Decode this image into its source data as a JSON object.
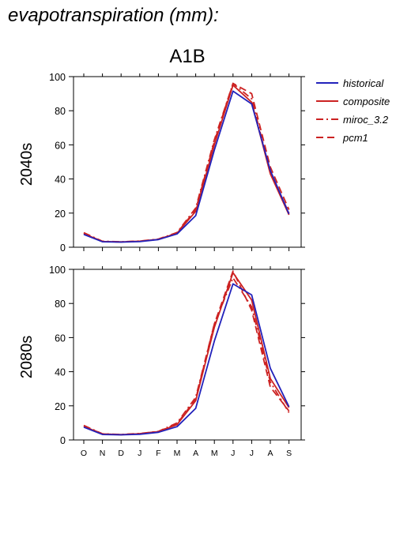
{
  "figure_title": "evapotranspiration (mm):",
  "scenario_title": "A1B",
  "colors": {
    "historical": "#2222bb",
    "projection": "#cc2222",
    "axis": "#000000"
  },
  "legend": {
    "placement": "right",
    "entries": [
      {
        "label": "historical",
        "color": "#2222bb",
        "style": "solid"
      },
      {
        "label": "composite",
        "color": "#cc2222",
        "style": "solid"
      },
      {
        "label": "miroc_3.2",
        "color": "#cc2222",
        "style": "dashdot"
      },
      {
        "label": "pcm1",
        "color": "#cc2222",
        "style": "dashed"
      }
    ]
  },
  "chart_data": [
    {
      "type": "line",
      "row_label": "2040s",
      "categories": [
        "O",
        "N",
        "D",
        "J",
        "F",
        "M",
        "A",
        "M",
        "J",
        "J",
        "A",
        "S"
      ],
      "ylim": [
        0,
        100
      ],
      "yticks": [
        0,
        20,
        40,
        60,
        80,
        100
      ],
      "grid": false,
      "series": [
        {
          "name": "historical",
          "color": "#2222bb",
          "style": "solid",
          "values": [
            7.5,
            3.2,
            3.0,
            3.3,
            4.5,
            7.8,
            18.5,
            57,
            91.5,
            84,
            45,
            19.5
          ]
        },
        {
          "name": "composite",
          "color": "#cc2222",
          "style": "solid",
          "values": [
            8.0,
            3.3,
            3.1,
            3.5,
            4.6,
            8.2,
            21,
            60,
            95,
            85,
            43,
            19
          ]
        },
        {
          "name": "miroc_3.2",
          "color": "#cc2222",
          "style": "dashdot",
          "values": [
            8.5,
            3.5,
            3.2,
            3.6,
            4.8,
            8.6,
            23,
            63,
            96,
            87,
            44,
            20
          ]
        },
        {
          "name": "pcm1",
          "color": "#cc2222",
          "style": "dashed",
          "values": [
            8.2,
            3.3,
            3.1,
            3.5,
            4.6,
            8.4,
            22,
            62,
            96,
            90,
            47,
            22
          ]
        }
      ]
    },
    {
      "type": "line",
      "row_label": "2080s",
      "categories": [
        "O",
        "N",
        "D",
        "J",
        "F",
        "M",
        "A",
        "M",
        "J",
        "J",
        "A",
        "S"
      ],
      "ylim": [
        0,
        100
      ],
      "yticks": [
        0,
        20,
        40,
        60,
        80,
        100
      ],
      "grid": false,
      "series": [
        {
          "name": "historical",
          "color": "#2222bb",
          "style": "solid",
          "values": [
            7.5,
            3.2,
            3.0,
            3.3,
            4.5,
            7.8,
            18.5,
            58,
            91.5,
            85,
            42,
            19.5
          ]
        },
        {
          "name": "composite",
          "color": "#cc2222",
          "style": "solid",
          "values": [
            8.0,
            3.4,
            3.1,
            3.6,
            4.8,
            9.0,
            23,
            66,
            98,
            82,
            36,
            19
          ]
        },
        {
          "name": "miroc_3.2",
          "color": "#cc2222",
          "style": "dashdot",
          "values": [
            8.5,
            3.6,
            3.2,
            3.8,
            5.0,
            10.0,
            25,
            68,
            95,
            78,
            34,
            16
          ]
        },
        {
          "name": "pcm1",
          "color": "#cc2222",
          "style": "dashed",
          "values": [
            8.2,
            3.5,
            3.1,
            3.7,
            4.9,
            9.5,
            24,
            68,
            99,
            76,
            31,
            17
          ]
        }
      ]
    }
  ]
}
